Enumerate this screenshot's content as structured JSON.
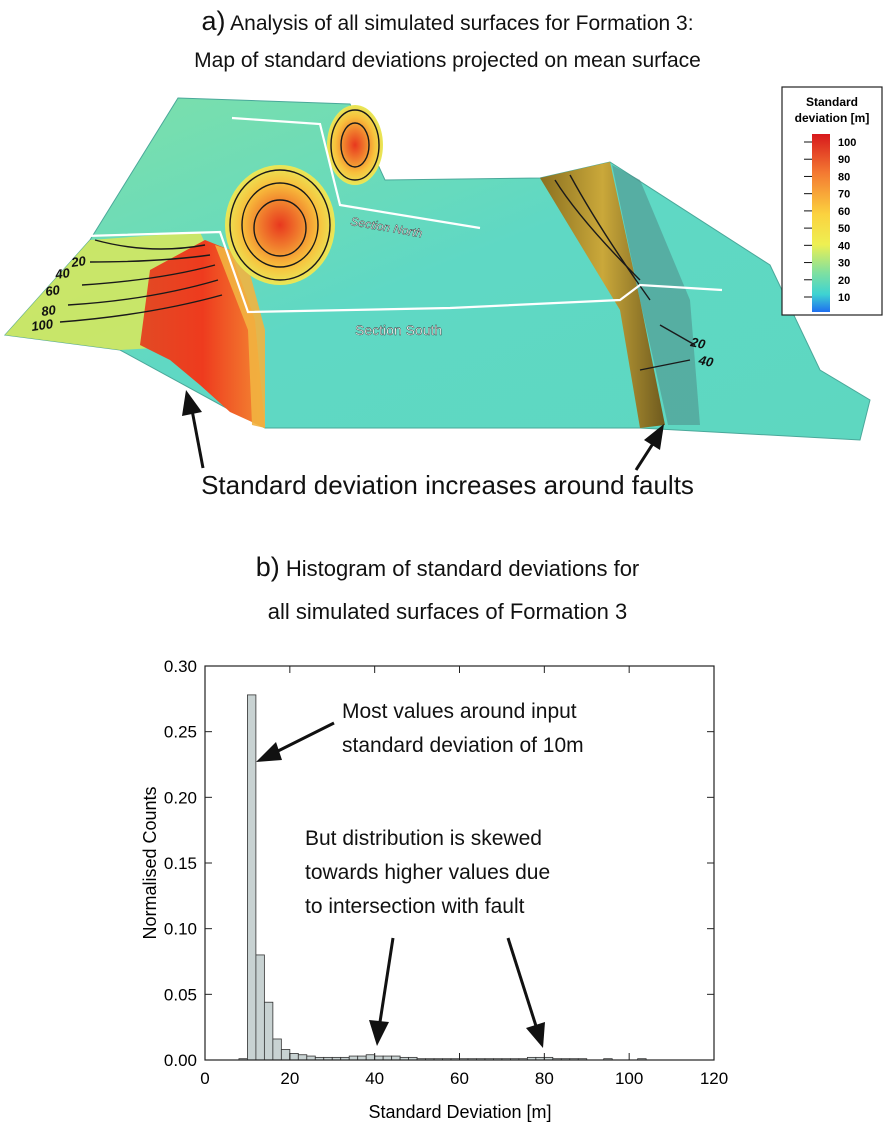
{
  "panel_a": {
    "letter": "a)",
    "title_line1": "Analysis of all simulated surfaces for Formation 3:",
    "title_line2": "Map of standard deviations projected on mean surface",
    "colorbar": {
      "title_line1": "Standard",
      "title_line2": "deviation [m]",
      "ticks": [
        "100",
        "90",
        "80",
        "70",
        "60",
        "50",
        "40",
        "30",
        "20",
        "10"
      ],
      "colors": [
        "#d7191c",
        "#f0522a",
        "#f78a3a",
        "#fbb33f",
        "#fde047",
        "#e8ec52",
        "#b8e06a",
        "#4dd6c8",
        "#1f7ff0"
      ]
    },
    "section_north": "Section North",
    "section_south": "Section South",
    "contour_labels_left": [
      "20",
      "40",
      "60",
      "80",
      "100"
    ],
    "contour_labels_right": [
      "20",
      "40"
    ],
    "annotation": "Standard deviation increases around faults"
  },
  "panel_b": {
    "letter": "b)",
    "title_line1": "Histogram of standard deviations for",
    "title_line2": "all simulated surfaces of Formation 3",
    "annotation1_line1": "Most values around input",
    "annotation1_line2": "standard deviation of 10m",
    "annotation2_line1": "But distribution is skewed",
    "annotation2_line2": "towards higher values due",
    "annotation2_line3": "to intersection with fault"
  },
  "chart_data": {
    "type": "bar",
    "title": "",
    "xlabel": "Standard Deviation [m]",
    "ylabel": "Normalised Counts",
    "xlim": [
      0,
      120
    ],
    "ylim": [
      0,
      0.3
    ],
    "xticks": [
      0,
      20,
      40,
      60,
      80,
      100,
      120
    ],
    "yticks": [
      "0.00",
      "0.05",
      "0.10",
      "0.15",
      "0.20",
      "0.25",
      "0.30"
    ],
    "bar_color": "#c8d2d2",
    "bin_width": 2,
    "bins": [
      {
        "x": 9,
        "value": 0.001
      },
      {
        "x": 11,
        "value": 0.278
      },
      {
        "x": 13,
        "value": 0.08
      },
      {
        "x": 15,
        "value": 0.044
      },
      {
        "x": 17,
        "value": 0.016
      },
      {
        "x": 19,
        "value": 0.008
      },
      {
        "x": 21,
        "value": 0.005
      },
      {
        "x": 23,
        "value": 0.004
      },
      {
        "x": 25,
        "value": 0.003
      },
      {
        "x": 27,
        "value": 0.002
      },
      {
        "x": 29,
        "value": 0.002
      },
      {
        "x": 31,
        "value": 0.002
      },
      {
        "x": 33,
        "value": 0.002
      },
      {
        "x": 35,
        "value": 0.003
      },
      {
        "x": 37,
        "value": 0.003
      },
      {
        "x": 39,
        "value": 0.004
      },
      {
        "x": 41,
        "value": 0.003
      },
      {
        "x": 43,
        "value": 0.003
      },
      {
        "x": 45,
        "value": 0.003
      },
      {
        "x": 47,
        "value": 0.002
      },
      {
        "x": 49,
        "value": 0.002
      },
      {
        "x": 51,
        "value": 0.001
      },
      {
        "x": 53,
        "value": 0.001
      },
      {
        "x": 55,
        "value": 0.001
      },
      {
        "x": 57,
        "value": 0.001
      },
      {
        "x": 59,
        "value": 0.001
      },
      {
        "x": 61,
        "value": 0.001
      },
      {
        "x": 63,
        "value": 0.001
      },
      {
        "x": 65,
        "value": 0.001
      },
      {
        "x": 67,
        "value": 0.001
      },
      {
        "x": 69,
        "value": 0.001
      },
      {
        "x": 71,
        "value": 0.001
      },
      {
        "x": 73,
        "value": 0.001
      },
      {
        "x": 75,
        "value": 0.001
      },
      {
        "x": 77,
        "value": 0.002
      },
      {
        "x": 79,
        "value": 0.002
      },
      {
        "x": 81,
        "value": 0.002
      },
      {
        "x": 83,
        "value": 0.001
      },
      {
        "x": 85,
        "value": 0.001
      },
      {
        "x": 87,
        "value": 0.001
      },
      {
        "x": 89,
        "value": 0.001
      },
      {
        "x": 95,
        "value": 0.001
      },
      {
        "x": 103,
        "value": 0.001
      }
    ]
  }
}
